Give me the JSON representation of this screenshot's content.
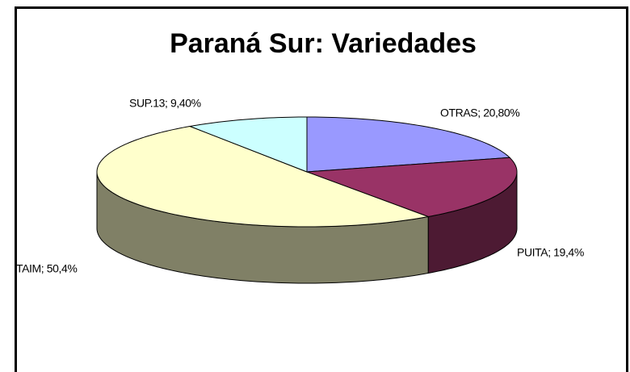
{
  "chart_data": {
    "type": "pie3d",
    "title": "Paraná Sur: Variedades",
    "values": [
      20.8,
      19.4,
      50.4,
      9.4
    ],
    "value_labels": [
      "OTRAS; 20,80%",
      "PUITA; 19,4%",
      "TAIM; 50,4%",
      "SUP.13; 9,40%"
    ],
    "colors": [
      "#9999ff",
      "#993366",
      "#ffffcc",
      "#ccffff"
    ]
  }
}
